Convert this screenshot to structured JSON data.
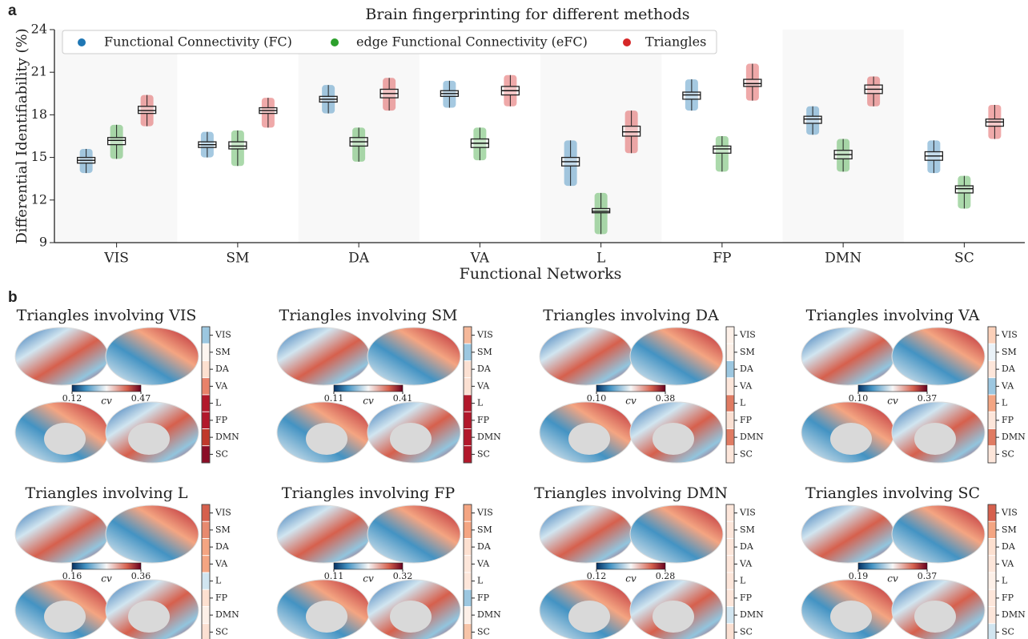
{
  "chart_data": [
    {
      "type": "box",
      "panel_label": "a",
      "title": "Brain fingerprinting for different methods",
      "xlabel": "Functional Networks",
      "ylabel": "Differential  Identifiability (%)",
      "categories": [
        "VIS",
        "SM",
        "DA",
        "VA",
        "L",
        "FP",
        "DMN",
        "SC"
      ],
      "ylim": [
        9,
        24
      ],
      "yticks": [
        9,
        12,
        15,
        18,
        21,
        24
      ],
      "grid": false,
      "legend": "upper left",
      "series": [
        {
          "name": "Functional Connectivity (FC)",
          "color": "#1f77b4",
          "median": [
            14.8,
            15.9,
            19.1,
            19.5,
            14.7,
            19.4,
            17.7,
            15.1
          ],
          "q1": [
            14.6,
            15.7,
            18.9,
            19.3,
            14.4,
            19.1,
            17.4,
            14.8
          ],
          "q3": [
            15.0,
            16.1,
            19.3,
            19.7,
            15.0,
            19.6,
            17.9,
            15.4
          ],
          "min": [
            13.9,
            15.0,
            18.1,
            18.5,
            13.0,
            18.3,
            16.6,
            13.9
          ],
          "max": [
            15.6,
            16.8,
            20.1,
            20.4,
            16.2,
            20.5,
            18.6,
            16.2
          ]
        },
        {
          "name": "edge Functional Connectivity (eFC)",
          "color": "#2ca02c",
          "median": [
            16.2,
            15.8,
            16.1,
            16.0,
            11.2,
            15.6,
            15.2,
            12.8
          ],
          "q1": [
            15.9,
            15.6,
            15.8,
            15.7,
            11.1,
            15.3,
            14.9,
            12.5
          ],
          "q3": [
            16.4,
            16.1,
            16.4,
            16.3,
            11.4,
            15.8,
            15.5,
            13.0
          ],
          "min": [
            14.9,
            14.4,
            14.7,
            14.8,
            9.6,
            14.0,
            14.0,
            11.4
          ],
          "max": [
            17.3,
            16.9,
            17.1,
            17.1,
            12.5,
            16.5,
            16.3,
            13.7
          ]
        },
        {
          "name": "Triangles",
          "color": "#d62728",
          "median": [
            18.3,
            18.3,
            19.5,
            19.7,
            16.8,
            20.2,
            19.8,
            17.5
          ],
          "q1": [
            18.1,
            18.1,
            19.2,
            19.4,
            16.5,
            20.0,
            19.5,
            17.2
          ],
          "q3": [
            18.6,
            18.5,
            19.8,
            20.0,
            17.2,
            20.5,
            20.1,
            17.7
          ],
          "min": [
            17.2,
            17.1,
            18.3,
            18.6,
            15.3,
            19.0,
            18.6,
            16.3
          ],
          "max": [
            19.4,
            19.2,
            20.6,
            20.8,
            18.3,
            21.6,
            20.7,
            18.7
          ]
        }
      ]
    },
    {
      "type": "brain_map",
      "panel_label": "b",
      "title": "Triangles involving VIS",
      "colorbar_label": "cv",
      "clim": [
        0.12,
        0.47
      ],
      "cticks": [
        0.12,
        0.47
      ],
      "categories": [
        "VIS",
        "SM",
        "DA",
        "VA",
        "L",
        "FP",
        "DMN",
        "SC"
      ],
      "colors": [
        "#9cc7e0",
        "#fdf5f0",
        "#fde0d0",
        "#e8826a",
        "#b2182b",
        "#b2182b",
        "#c0392b",
        "#8b0d26"
      ]
    },
    {
      "type": "brain_map",
      "title": "Triangles involving SM",
      "colorbar_label": "cv",
      "clim": [
        0.11,
        0.41
      ],
      "cticks": [
        0.11,
        0.41
      ],
      "categories": [
        "VIS",
        "SM",
        "DA",
        "VA",
        "L",
        "FP",
        "DMN",
        "SC"
      ],
      "colors": [
        "#f5b89a",
        "#9cc7e0",
        "#fbe0d2",
        "#fbe0d2",
        "#b2182b",
        "#b2182b",
        "#b2182b",
        "#b2182b"
      ]
    },
    {
      "type": "brain_map",
      "title": "Triangles involving DA",
      "colorbar_label": "cv",
      "clim": [
        0.1,
        0.38
      ],
      "cticks": [
        {
          "value": 0.1,
          "label": "0.10"
        },
        0.38
      ],
      "categories": [
        "VIS",
        "SM",
        "DA",
        "VA",
        "L",
        "FP",
        "DMN",
        "SC"
      ],
      "colors": [
        "#fdf0e8",
        "#fdf0e8",
        "#9cc7e0",
        "#fde6da",
        "#e07b62",
        "#fbe0d2",
        "#e07b62",
        "#fde6da"
      ]
    },
    {
      "type": "brain_map",
      "title": "Triangles involving VA",
      "colorbar_label": "cv",
      "clim": [
        0.1,
        0.37
      ],
      "cticks": [
        {
          "value": 0.1,
          "label": "0.10"
        },
        0.37
      ],
      "categories": [
        "VIS",
        "SM",
        "DA",
        "VA",
        "L",
        "FP",
        "DMN",
        "SC"
      ],
      "colors": [
        "#fbd0b9",
        "#eaf2f8",
        "#fde6da",
        "#9cc7e0",
        "#f3a583",
        "#fde6da",
        "#e07b62",
        "#fde6da"
      ]
    },
    {
      "type": "brain_map",
      "title": "Triangles involving L",
      "colorbar_label": "cv",
      "clim": [
        0.16,
        0.36
      ],
      "cticks": [
        0.16,
        0.36
      ],
      "categories": [
        "VIS",
        "SM",
        "DA",
        "VA",
        "L",
        "FP",
        "DMN",
        "SC"
      ],
      "colors": [
        "#d6604d",
        "#e78a6f",
        "#f4a582",
        "#f4a582",
        "#d1e5f0",
        "#fde0d0",
        "#fdf0e8",
        "#fbe0d2"
      ]
    },
    {
      "type": "brain_map",
      "title": "Triangles involving FP",
      "colorbar_label": "cv",
      "clim": [
        0.11,
        0.32
      ],
      "cticks": [
        0.11,
        0.32
      ],
      "categories": [
        "VIS",
        "SM",
        "DA",
        "VA",
        "L",
        "FP",
        "DMN",
        "SC"
      ],
      "colors": [
        "#f4a582",
        "#f4a582",
        "#fde0d0",
        "#fde6da",
        "#fde6da",
        "#9cc7e0",
        "#fdf0e8",
        "#f7c4a8"
      ]
    },
    {
      "type": "brain_map",
      "title": "Triangles involving DMN",
      "colorbar_label": "cv",
      "clim": [
        0.12,
        0.28
      ],
      "cticks": [
        0.12,
        0.28
      ],
      "categories": [
        "VIS",
        "SM",
        "DA",
        "VA",
        "L",
        "FP",
        "DMN",
        "SC"
      ],
      "colors": [
        "#fde6da",
        "#fde6da",
        "#fde6da",
        "#fde6da",
        "#fde6da",
        "#fde6da",
        "#d1e5f0",
        "#fbe0d2"
      ]
    },
    {
      "type": "brain_map",
      "title": "Triangles involving SC",
      "colorbar_label": "cv",
      "clim": [
        0.19,
        0.37
      ],
      "cticks": [
        0.19,
        0.37
      ],
      "categories": [
        "VIS",
        "SM",
        "DA",
        "VA",
        "L",
        "FP",
        "DMN",
        "SC"
      ],
      "colors": [
        "#d6604d",
        "#f4a582",
        "#fde0d0",
        "#fde6da",
        "#fdf0e8",
        "#fde6da",
        "#fde6da",
        "#d1e5f0"
      ]
    }
  ]
}
